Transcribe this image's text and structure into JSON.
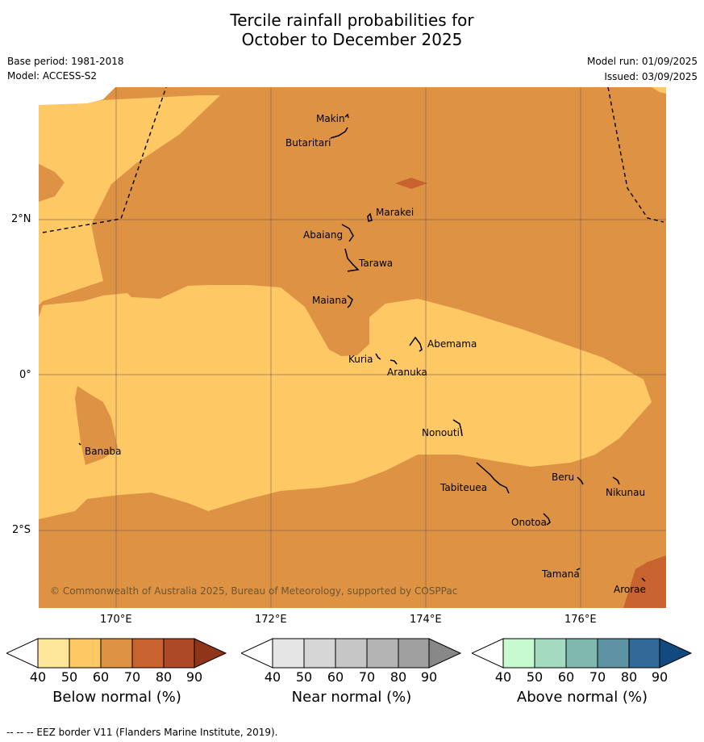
{
  "title": {
    "line1": "Tercile rainfall probabilities for",
    "line2": "October to December 2025"
  },
  "meta": {
    "base_period": "Base period: 1981-2018",
    "model": "Model: ACCESS-S2",
    "model_run": "Model run: 01/09/2025",
    "issued": "Issued: 03/09/2025"
  },
  "axes": {
    "lon_ticks": [
      "170°E",
      "172°E",
      "174°E",
      "176°E"
    ],
    "lat_ticks": [
      "2°N",
      "0°",
      "2°S"
    ]
  },
  "colors": {
    "below_40_50": "#fee79b",
    "below_50_60": "#fec965",
    "below_60_70": "#de9344",
    "below_70_80": "#c8622f",
    "below_80_90": "#ad4927",
    "below_90plus": "#8f3519",
    "near": [
      "#e5e5e5",
      "#d6d6d6",
      "#c6c6c6",
      "#b4b4b4",
      "#a0a0a0",
      "#888888"
    ],
    "above": [
      "#c8fad0",
      "#a4dbc0",
      "#80b8b0",
      "#5d93a2",
      "#336996",
      "#124a80"
    ]
  },
  "places": [
    {
      "name": "Makin"
    },
    {
      "name": "Butaritari"
    },
    {
      "name": "Marakei"
    },
    {
      "name": "Abaiang"
    },
    {
      "name": "Tarawa"
    },
    {
      "name": "Maiana"
    },
    {
      "name": "Abemama"
    },
    {
      "name": "Kuria"
    },
    {
      "name": "Aranuka"
    },
    {
      "name": "Nonouti"
    },
    {
      "name": "Banaba"
    },
    {
      "name": "Beru"
    },
    {
      "name": "Tabiteuea"
    },
    {
      "name": "Nikunau"
    },
    {
      "name": "Onotoa"
    },
    {
      "name": "Tamana"
    },
    {
      "name": "Arorae"
    }
  ],
  "copyright": "© Commonwealth of Australia 2025, Bureau of Meteorology, supported by COSPPac",
  "colorbars": [
    {
      "label": "Below normal (%)",
      "ticks": [
        "40",
        "50",
        "60",
        "70",
        "80",
        "90"
      ]
    },
    {
      "label": "Near normal (%)",
      "ticks": [
        "40",
        "50",
        "60",
        "70",
        "80",
        "90"
      ]
    },
    {
      "label": "Above normal (%)",
      "ticks": [
        "40",
        "50",
        "60",
        "70",
        "80",
        "90"
      ]
    }
  ],
  "footnote": "--  --  -- EEZ border V11 (Flanders Marine Institute, 2019)."
}
